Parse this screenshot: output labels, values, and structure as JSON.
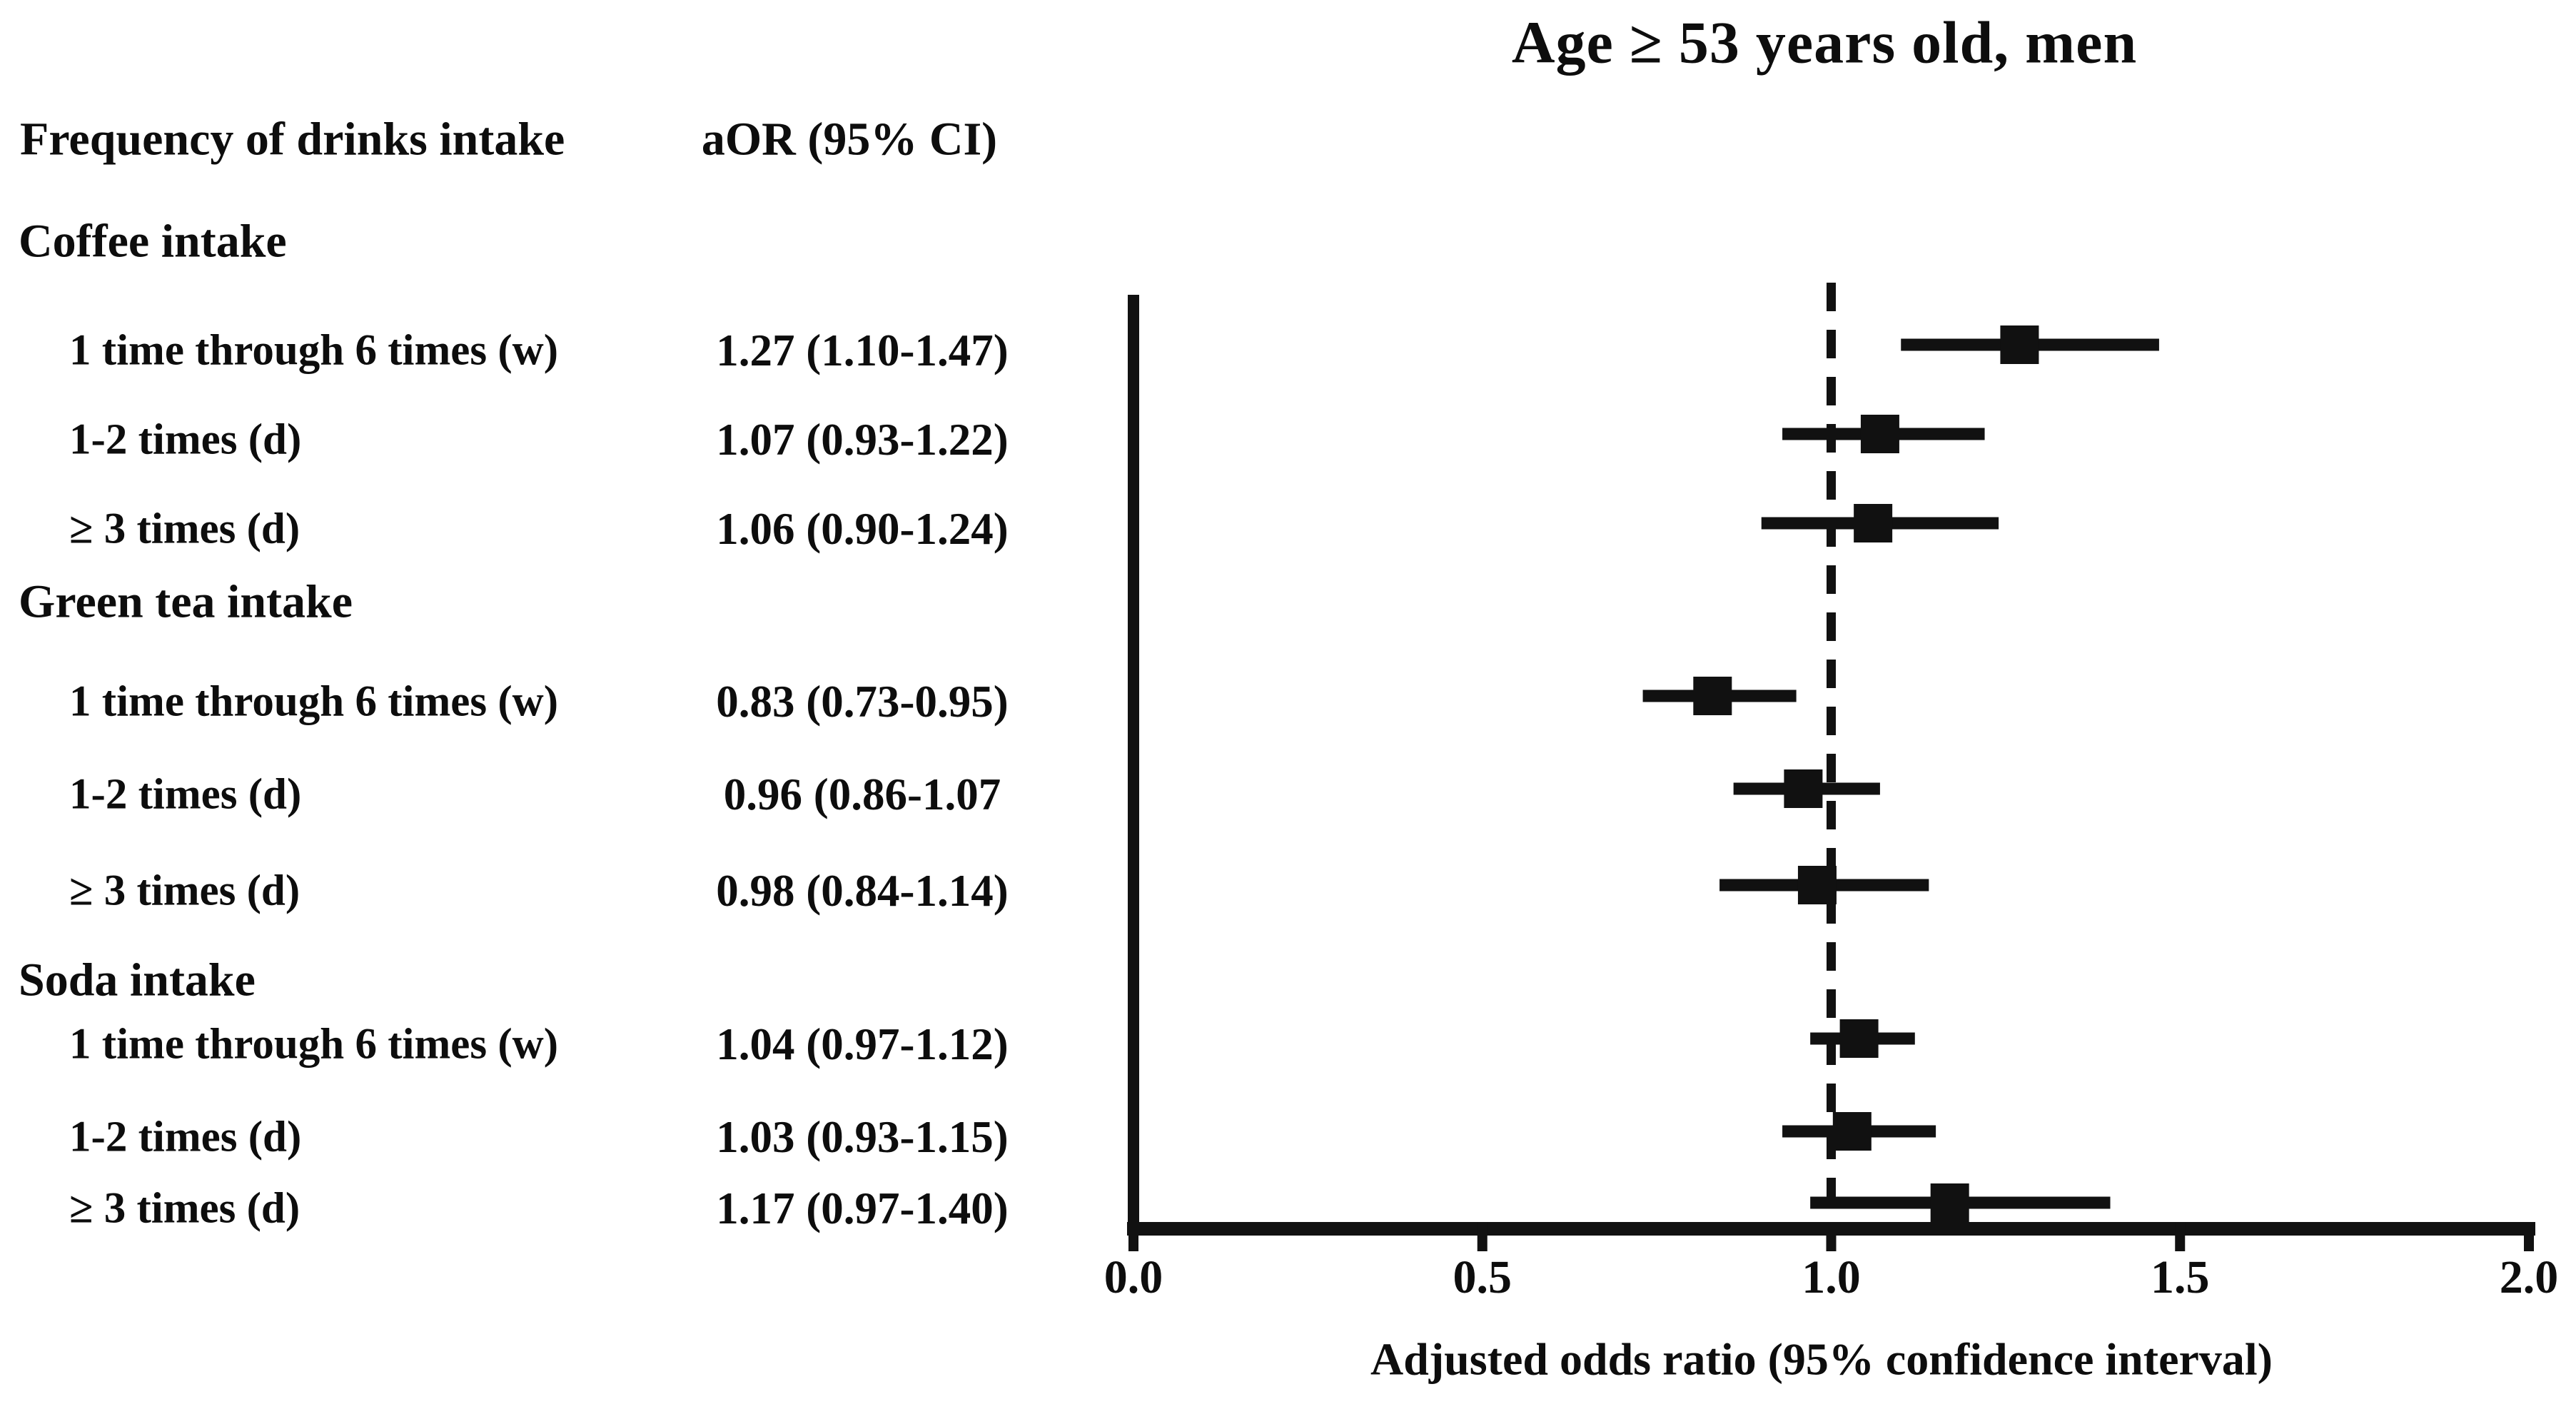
{
  "figure_title": "Age ≥ 53 years old, men",
  "columns": {
    "frequency_header": "Frequency of drinks intake",
    "aor_header": "aOR (95% CI)"
  },
  "chart_data": {
    "type": "scatter",
    "variant": "forest-plot",
    "title": "Age ≥ 53 years old, men",
    "xlabel": "Adjusted odds ratio (95% confidence interval)",
    "xlim": [
      0.0,
      2.0
    ],
    "x_tick_labels": [
      "0.0",
      "0.5",
      "1.0",
      "1.5",
      "2.0"
    ],
    "x_tick_values": [
      0.0,
      0.5,
      1.0,
      1.5,
      2.0
    ],
    "reference_line_x": 1.0,
    "reference_line_style": "dashed",
    "marker": "filled-square",
    "marker_color": "#111111",
    "axis_color": "#111111",
    "grid": false,
    "legend": null,
    "groups": [
      {
        "label": "Coffee intake",
        "rows": [
          {
            "label": "1 time through 6 times (w)",
            "aor_text": "1.27 (1.10-1.47)",
            "aor": 1.27,
            "ci_low": 1.1,
            "ci_high": 1.47
          },
          {
            "label": "1-2 times (d)",
            "aor_text": "1.07 (0.93-1.22)",
            "aor": 1.07,
            "ci_low": 0.93,
            "ci_high": 1.22
          },
          {
            "label": "≥ 3 times (d)",
            "aor_text": "1.06 (0.90-1.24)",
            "aor": 1.06,
            "ci_low": 0.9,
            "ci_high": 1.24
          }
        ]
      },
      {
        "label": "Green tea intake",
        "rows": [
          {
            "label": "1 time through 6 times (w)",
            "aor_text": "0.83 (0.73-0.95)",
            "aor": 0.83,
            "ci_low": 0.73,
            "ci_high": 0.95
          },
          {
            "label": "1-2 times (d)",
            "aor_text": "0.96 (0.86-1.07",
            "aor": 0.96,
            "ci_low": 0.86,
            "ci_high": 1.07
          },
          {
            "label": "≥ 3 times (d)",
            "aor_text": "0.98 (0.84-1.14)",
            "aor": 0.98,
            "ci_low": 0.84,
            "ci_high": 1.14
          }
        ]
      },
      {
        "label": "Soda intake",
        "rows": [
          {
            "label": "1 time through 6 times (w)",
            "aor_text": "1.04 (0.97-1.12)",
            "aor": 1.04,
            "ci_low": 0.97,
            "ci_high": 1.12
          },
          {
            "label": "1-2 times (d)",
            "aor_text": "1.03 (0.93-1.15)",
            "aor": 1.03,
            "ci_low": 0.93,
            "ci_high": 1.15
          },
          {
            "label": "≥ 3 times (d)",
            "aor_text": "1.17 (0.97-1.40)",
            "aor": 1.17,
            "ci_low": 0.97,
            "ci_high": 1.4
          }
        ]
      }
    ]
  }
}
